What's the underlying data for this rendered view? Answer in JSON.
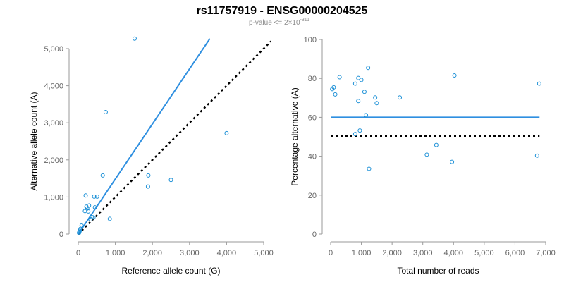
{
  "header": {
    "title": "rs11757919 - ENSG00000204525",
    "subtitle_prefix": "p-value <= 2×10",
    "subtitle_exponent": "-311"
  },
  "colors": {
    "points": "#1a8fd6",
    "fit_line": "#2e8fe0",
    "reference_line": "#000000",
    "axis": "#9a9a9a",
    "tick_text": "#666666"
  },
  "chart_data": [
    {
      "type": "scatter",
      "id": "allele-counts",
      "xlabel": "Reference allele count (G)",
      "ylabel": "Alternative allele count (A)",
      "xlim": [
        0,
        5000
      ],
      "ylim": [
        0,
        5000
      ],
      "xticks": [
        0,
        1000,
        2000,
        3000,
        4000,
        5000
      ],
      "yticks": [
        0,
        1000,
        2000,
        3000,
        4000,
        5000
      ],
      "xtick_labels": [
        "0",
        "1,000",
        "2,000",
        "3,000",
        "4,000",
        "5,000"
      ],
      "ytick_labels": [
        "0",
        "1,000",
        "2,000",
        "3,000",
        "4,000",
        "5,000"
      ],
      "grid": false,
      "points": [
        [
          20,
          30
        ],
        [
          30,
          60
        ],
        [
          40,
          90
        ],
        [
          60,
          140
        ],
        [
          90,
          230
        ],
        [
          180,
          620
        ],
        [
          200,
          1040
        ],
        [
          220,
          740
        ],
        [
          240,
          690
        ],
        [
          270,
          610
        ],
        [
          290,
          770
        ],
        [
          330,
          400
        ],
        [
          360,
          460
        ],
        [
          410,
          450
        ],
        [
          430,
          1010
        ],
        [
          450,
          720
        ],
        [
          510,
          1010
        ],
        [
          660,
          1580
        ],
        [
          740,
          3290
        ],
        [
          850,
          410
        ],
        [
          1520,
          5270
        ],
        [
          1880,
          1280
        ],
        [
          1890,
          1580
        ],
        [
          2500,
          1460
        ],
        [
          4000,
          2720
        ]
      ],
      "fit_line": {
        "x": [
          0,
          3550
        ],
        "y": [
          0,
          5270
        ]
      },
      "reference_line": {
        "x": [
          0,
          5200
        ],
        "y": [
          0,
          5200
        ]
      }
    },
    {
      "type": "scatter",
      "id": "percentage-alternative",
      "xlabel": "Total number of reads",
      "ylabel": "Percentage alternative (A)",
      "xlim": [
        0,
        7000
      ],
      "ylim": [
        0,
        100
      ],
      "xticks": [
        0,
        1000,
        2000,
        3000,
        4000,
        5000,
        6000,
        7000
      ],
      "yticks": [
        0,
        20,
        40,
        60,
        80,
        100
      ],
      "xtick_labels": [
        "0",
        "1,000",
        "2,000",
        "3,000",
        "4,000",
        "5,000",
        "6,000",
        "7,000"
      ],
      "ytick_labels": [
        "0",
        "20",
        "40",
        "60",
        "80",
        "100"
      ],
      "grid": false,
      "points": [
        [
          50,
          74.5
        ],
        [
          100,
          75.4
        ],
        [
          150,
          71.8
        ],
        [
          290,
          80.6
        ],
        [
          800,
          77.3
        ],
        [
          800,
          51.4
        ],
        [
          900,
          68.4
        ],
        [
          900,
          80.2
        ],
        [
          950,
          53.2
        ],
        [
          1000,
          79.2
        ],
        [
          1100,
          73.1
        ],
        [
          1150,
          61.1
        ],
        [
          1220,
          85.4
        ],
        [
          1250,
          33.5
        ],
        [
          1450,
          70.2
        ],
        [
          1500,
          67.3
        ],
        [
          2250,
          70.2
        ],
        [
          3130,
          40.8
        ],
        [
          3440,
          45.8
        ],
        [
          3950,
          37.1
        ],
        [
          4030,
          81.5
        ],
        [
          6720,
          40.3
        ],
        [
          6790,
          77.3
        ]
      ],
      "fit_line": {
        "x": [
          0,
          6800
        ],
        "y": [
          60,
          60
        ]
      },
      "reference_line": {
        "x": [
          0,
          6800
        ],
        "y": [
          50.3,
          50.3
        ]
      }
    }
  ]
}
